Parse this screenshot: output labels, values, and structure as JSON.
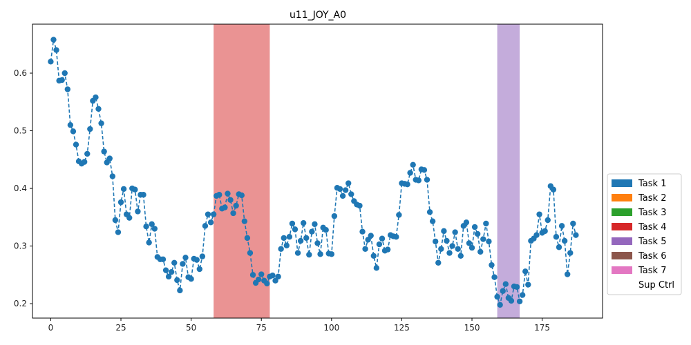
{
  "chart_data": {
    "type": "line",
    "title": "u11_JOY_A0",
    "xlabel": "",
    "ylabel": "",
    "xlim": [
      -6.5,
      196.5
    ],
    "ylim": [
      0.175,
      0.685
    ],
    "x_ticks": [
      0,
      25,
      50,
      75,
      100,
      125,
      150,
      175
    ],
    "y_ticks": [
      0.2,
      0.3,
      0.4,
      0.5,
      0.6
    ],
    "y_tick_labels": [
      "0.2",
      "0.3",
      "0.4",
      "0.5",
      "0.6"
    ],
    "grid": false,
    "legend_position": "right",
    "series": [
      {
        "color": "#1f77b4",
        "style": "dashed line with circle markers",
        "values": [
          0.62,
          0.658,
          0.64,
          0.587,
          0.588,
          0.6,
          0.572,
          0.51,
          0.499,
          0.476,
          0.447,
          0.443,
          0.446,
          0.46,
          0.503,
          0.552,
          0.558,
          0.538,
          0.513,
          0.464,
          0.445,
          0.452,
          0.421,
          0.345,
          0.324,
          0.376,
          0.399,
          0.355,
          0.349,
          0.4,
          0.398,
          0.36,
          0.389,
          0.389,
          0.334,
          0.306,
          0.338,
          0.33,
          0.281,
          0.277,
          0.277,
          0.258,
          0.247,
          0.255,
          0.271,
          0.241,
          0.223,
          0.269,
          0.28,
          0.246,
          0.243,
          0.278,
          0.276,
          0.26,
          0.282,
          0.335,
          0.355,
          0.341,
          0.355,
          0.387,
          0.389,
          0.365,
          0.367,
          0.391,
          0.38,
          0.357,
          0.37,
          0.39,
          0.388,
          0.343,
          0.314,
          0.288,
          0.25,
          0.236,
          0.242,
          0.251,
          0.24,
          0.235,
          0.247,
          0.249,
          0.24,
          0.247,
          0.295,
          0.314,
          0.301,
          0.316,
          0.339,
          0.329,
          0.288,
          0.309,
          0.34,
          0.314,
          0.285,
          0.325,
          0.338,
          0.305,
          0.286,
          0.332,
          0.328,
          0.287,
          0.286,
          0.352,
          0.401,
          0.399,
          0.387,
          0.397,
          0.409,
          0.39,
          0.378,
          0.372,
          0.37,
          0.325,
          0.295,
          0.311,
          0.318,
          0.283,
          0.262,
          0.303,
          0.313,
          0.292,
          0.294,
          0.319,
          0.317,
          0.316,
          0.354,
          0.409,
          0.408,
          0.407,
          0.427,
          0.441,
          0.415,
          0.414,
          0.433,
          0.432,
          0.415,
          0.359,
          0.343,
          0.308,
          0.271,
          0.295,
          0.326,
          0.309,
          0.288,
          0.3,
          0.324,
          0.295,
          0.283,
          0.335,
          0.341,
          0.305,
          0.297,
          0.333,
          0.321,
          0.29,
          0.312,
          0.339,
          0.308,
          0.267,
          0.246,
          0.212,
          0.198,
          0.222,
          0.234,
          0.21,
          0.205,
          0.23,
          0.229,
          0.204,
          0.215,
          0.256,
          0.233,
          0.309,
          0.313,
          0.319,
          0.355,
          0.323,
          0.326,
          0.345,
          0.404,
          0.398,
          0.316,
          0.298,
          0.335,
          0.309,
          0.251,
          0.288,
          0.339,
          0.319
        ]
      }
    ],
    "spans": [
      {
        "task": "Task 4",
        "x_start": 58,
        "x_end": 78,
        "color": "#d62728",
        "opacity": 0.5
      },
      {
        "task": "Task 5",
        "x_start": 159,
        "x_end": 167,
        "color": "#9467bd",
        "opacity": 0.55
      }
    ],
    "legend": [
      {
        "label": "Task 1",
        "color": "#1f77b4"
      },
      {
        "label": "Task 2",
        "color": "#ff7f0e"
      },
      {
        "label": "Task 3",
        "color": "#2ca02c"
      },
      {
        "label": "Task 4",
        "color": "#d62728"
      },
      {
        "label": "Task 5",
        "color": "#9467bd"
      },
      {
        "label": "Task 6",
        "color": "#8c564b"
      },
      {
        "label": "Task 7",
        "color": "#e377c2"
      },
      {
        "label": "Sup Ctrl",
        "color": "#ffffff"
      }
    ]
  }
}
